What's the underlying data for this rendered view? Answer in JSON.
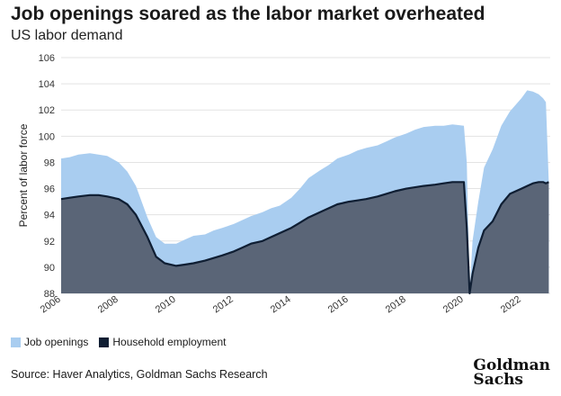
{
  "header": {
    "title": "Job openings soared as the labor market overheated",
    "subtitle": "US labor demand"
  },
  "footer": {
    "source": "Source: Haver Analytics, Goldman Sachs Research",
    "logo_line1": "Goldman",
    "logo_line2": "Sachs"
  },
  "colors": {
    "job_openings": "#a9cdf0",
    "household_employment": "#5a6577",
    "household_line": "#0f1e33",
    "grid": "#e3e3e3"
  },
  "chart_data": {
    "type": "area",
    "title": "Job openings soared as the labor market overheated",
    "subtitle": "US labor demand",
    "xlabel": "",
    "ylabel": "Percent of labor force",
    "ylim": [
      88,
      106
    ],
    "yticks": [
      "88",
      "90",
      "92",
      "94",
      "96",
      "98",
      "100",
      "102",
      "104",
      "106"
    ],
    "xlim": [
      2006.0,
      2023.0
    ],
    "xticks": [
      "2006",
      "2008",
      "2010",
      "2012",
      "2014",
      "2016",
      "2018",
      "2020",
      "2022"
    ],
    "grid": true,
    "legend": "bottom-left",
    "series": [
      {
        "name": "Job openings",
        "x": [
          2006.0,
          2006.3,
          2006.6,
          2007.0,
          2007.3,
          2007.6,
          2008.0,
          2008.3,
          2008.6,
          2009.0,
          2009.3,
          2009.6,
          2010.0,
          2010.3,
          2010.6,
          2011.0,
          2011.3,
          2011.6,
          2012.0,
          2012.3,
          2012.6,
          2013.0,
          2013.3,
          2013.6,
          2014.0,
          2014.3,
          2014.6,
          2015.0,
          2015.3,
          2015.6,
          2016.0,
          2016.3,
          2016.6,
          2017.0,
          2017.3,
          2017.6,
          2018.0,
          2018.3,
          2018.6,
          2019.0,
          2019.3,
          2019.6,
          2020.0,
          2020.1,
          2020.2,
          2020.3,
          2020.5,
          2020.7,
          2021.0,
          2021.3,
          2021.6,
          2022.0,
          2022.2,
          2022.4,
          2022.6,
          2022.75,
          2022.85,
          2022.95
        ],
        "values": [
          98.3,
          98.4,
          98.6,
          98.7,
          98.6,
          98.5,
          98.0,
          97.3,
          96.2,
          93.8,
          92.3,
          91.8,
          91.8,
          92.1,
          92.4,
          92.5,
          92.8,
          93.0,
          93.3,
          93.6,
          93.9,
          94.2,
          94.5,
          94.7,
          95.3,
          96.0,
          96.8,
          97.4,
          97.8,
          98.3,
          98.6,
          98.9,
          99.1,
          99.3,
          99.6,
          99.9,
          100.2,
          100.5,
          100.7,
          100.8,
          100.8,
          100.9,
          100.8,
          98.0,
          88.0,
          92.0,
          95.0,
          97.6,
          99.0,
          100.8,
          101.9,
          102.9,
          103.5,
          103.4,
          103.2,
          102.9,
          102.6,
          96.5
        ]
      },
      {
        "name": "Household employment",
        "x": [
          2006.0,
          2006.3,
          2006.6,
          2007.0,
          2007.3,
          2007.6,
          2008.0,
          2008.3,
          2008.6,
          2009.0,
          2009.3,
          2009.6,
          2010.0,
          2010.3,
          2010.6,
          2011.0,
          2011.3,
          2011.6,
          2012.0,
          2012.3,
          2012.6,
          2013.0,
          2013.3,
          2013.6,
          2014.0,
          2014.3,
          2014.6,
          2015.0,
          2015.3,
          2015.6,
          2016.0,
          2016.3,
          2016.6,
          2017.0,
          2017.3,
          2017.6,
          2018.0,
          2018.3,
          2018.6,
          2019.0,
          2019.3,
          2019.6,
          2020.0,
          2020.1,
          2020.2,
          2020.3,
          2020.5,
          2020.7,
          2021.0,
          2021.3,
          2021.6,
          2022.0,
          2022.2,
          2022.4,
          2022.6,
          2022.75,
          2022.85,
          2022.95
        ],
        "values": [
          95.2,
          95.3,
          95.4,
          95.5,
          95.5,
          95.4,
          95.2,
          94.8,
          94.0,
          92.3,
          90.8,
          90.3,
          90.1,
          90.2,
          90.3,
          90.5,
          90.7,
          90.9,
          91.2,
          91.5,
          91.8,
          92.0,
          92.3,
          92.6,
          93.0,
          93.4,
          93.8,
          94.2,
          94.5,
          94.8,
          95.0,
          95.1,
          95.2,
          95.4,
          95.6,
          95.8,
          96.0,
          96.1,
          96.2,
          96.3,
          96.4,
          96.5,
          96.5,
          93.0,
          87.8,
          89.5,
          91.5,
          92.8,
          93.5,
          94.8,
          95.6,
          96.0,
          96.2,
          96.4,
          96.5,
          96.5,
          96.4,
          96.5
        ]
      }
    ]
  }
}
